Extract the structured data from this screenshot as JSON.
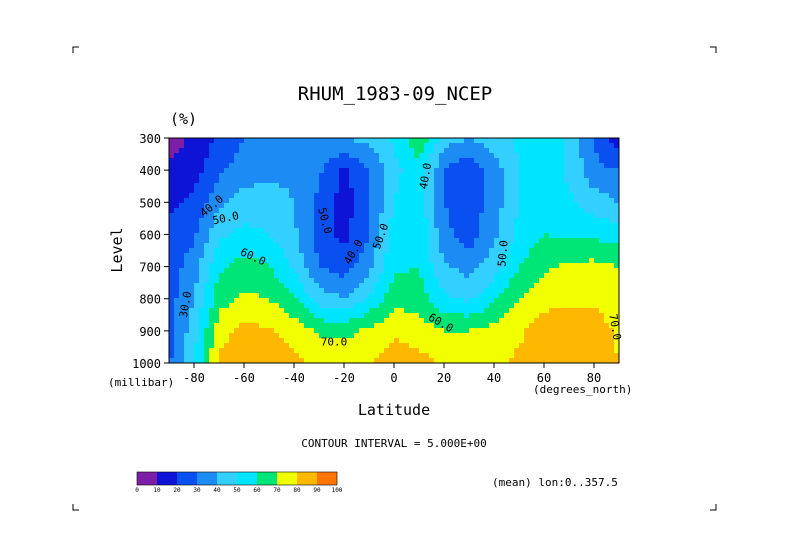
{
  "chart_data": {
    "type": "heatmap",
    "title": "RHUM_1983-09_NCEP",
    "units": "(%)",
    "xlabel": "Latitude",
    "x_units": "(degrees_north)",
    "ylabel": "Level",
    "y_units": "(millibar)",
    "xlim": [
      -90,
      90
    ],
    "ylim": [
      1000,
      300
    ],
    "x_ticks": [
      -80,
      -60,
      -40,
      -20,
      0,
      20,
      40,
      60,
      80
    ],
    "x_tick_labels": [
      "-80",
      "-60",
      "-40",
      "-20",
      "0",
      "20",
      "40",
      "60",
      "80"
    ],
    "y_ticks": [
      300,
      400,
      500,
      600,
      700,
      800,
      900,
      1000
    ],
    "y_tick_labels": [
      "300",
      "400",
      "500",
      "600",
      "700",
      "800",
      "900",
      "1000"
    ],
    "contour_interval_text": "CONTOUR INTERVAL = 5.000E+00",
    "subset_text": "(mean) lon:0..357.5",
    "contour_labels": [
      {
        "text": "40.0",
        "lat": -72,
        "lev": 520,
        "angle": -40
      },
      {
        "text": "50.0",
        "lat": -67,
        "lev": 560,
        "angle": -12
      },
      {
        "text": "60.0",
        "lat": -57,
        "lev": 680,
        "angle": 25
      },
      {
        "text": "30.0",
        "lat": -82,
        "lev": 820,
        "angle": -80
      },
      {
        "text": "70.0",
        "lat": -24,
        "lev": 945,
        "angle": 0
      },
      {
        "text": "50.0",
        "lat": -29,
        "lev": 560,
        "angle": 75
      },
      {
        "text": "40.0",
        "lat": -15,
        "lev": 660,
        "angle": -60
      },
      {
        "text": "50.0",
        "lat": -4,
        "lev": 610,
        "angle": -70
      },
      {
        "text": "40.0",
        "lat": 14,
        "lev": 420,
        "angle": -80
      },
      {
        "text": "60.0",
        "lat": 18,
        "lev": 885,
        "angle": 30
      },
      {
        "text": "50.0",
        "lat": 45,
        "lev": 660,
        "angle": -85
      },
      {
        "text": "70.0",
        "lat": 87,
        "lev": 890,
        "angle": 80
      }
    ],
    "lat": [
      -90,
      -80,
      -70,
      -60,
      -50,
      -40,
      -30,
      -20,
      -10,
      0,
      10,
      20,
      30,
      40,
      50,
      60,
      70,
      80,
      90
    ],
    "lev": [
      300,
      400,
      500,
      600,
      700,
      800,
      900,
      1000
    ],
    "values": [
      [
        5,
        12,
        22,
        30,
        32,
        35,
        38,
        40,
        43,
        52,
        68,
        45,
        40,
        46,
        52,
        55,
        48,
        30,
        12
      ],
      [
        12,
        16,
        28,
        35,
        37,
        38,
        32,
        18,
        30,
        46,
        58,
        30,
        22,
        35,
        50,
        55,
        48,
        33,
        30
      ],
      [
        18,
        22,
        38,
        44,
        45,
        40,
        28,
        15,
        28,
        50,
        58,
        30,
        23,
        35,
        50,
        57,
        52,
        45,
        40
      ],
      [
        22,
        28,
        48,
        53,
        50,
        42,
        26,
        17,
        30,
        55,
        58,
        33,
        25,
        38,
        53,
        60,
        58,
        58,
        55
      ],
      [
        25,
        35,
        58,
        64,
        60,
        48,
        30,
        25,
        36,
        58,
        60,
        42,
        36,
        45,
        60,
        68,
        72,
        73,
        70
      ],
      [
        26,
        40,
        66,
        72,
        70,
        62,
        45,
        40,
        52,
        66,
        66,
        52,
        48,
        58,
        70,
        76,
        78,
        78,
        75
      ],
      [
        27,
        45,
        76,
        83,
        81,
        76,
        68,
        67,
        72,
        78,
        75,
        70,
        70,
        74,
        78,
        86,
        86,
        85,
        78
      ],
      [
        28,
        50,
        82,
        89,
        87,
        82,
        78,
        78,
        80,
        86,
        84,
        78,
        78,
        78,
        82,
        88,
        88,
        87,
        80
      ]
    ],
    "levels": [
      0,
      10,
      20,
      30,
      40,
      50,
      60,
      70,
      80,
      90,
      100
    ],
    "colorbar": {
      "tick_labels": [
        "0",
        "10",
        "20",
        "30",
        "40",
        "50",
        "60",
        "70",
        "80",
        "90",
        "100"
      ],
      "colors": [
        "#7d1fa6",
        "#0e14d6",
        "#0a4ff0",
        "#1c8cf4",
        "#33cfff",
        "#00e5ff",
        "#00e676",
        "#f2ff00",
        "#ffb800",
        "#ff7500",
        "#ff0000"
      ]
    },
    "grid": false,
    "legend": "colorbar bottom-left"
  }
}
